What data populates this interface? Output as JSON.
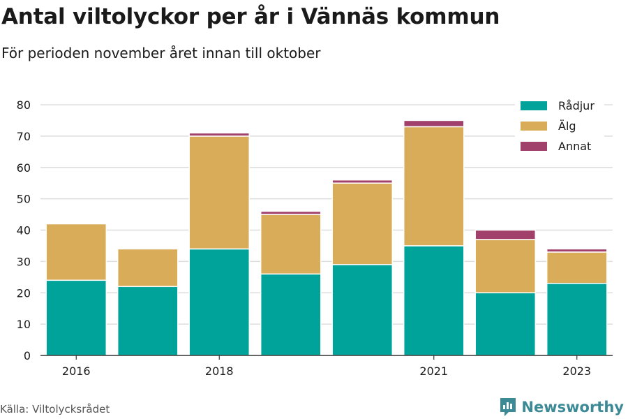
{
  "title": "Antal viltolyckor per år i Vännäs kommun",
  "subtitle": "För perioden november året innan till oktober",
  "source": "Källa: Viltolycksrådet",
  "brand": "Newsworthy",
  "colors": {
    "Rådjur": "#00a39a",
    "Älg": "#d9ac5a",
    "Annat": "#a1416b",
    "grid": "#dddddd",
    "axis": "#333333"
  },
  "chart_data": {
    "type": "bar",
    "stacked": true,
    "categories": [
      "2016",
      "2017",
      "2018",
      "2019",
      "2020",
      "2021",
      "2022",
      "2023"
    ],
    "x_tick_labels": [
      "2016",
      "",
      "2018",
      "",
      "",
      "2021",
      "",
      "2023"
    ],
    "series": [
      {
        "name": "Rådjur",
        "values": [
          24,
          22,
          34,
          26,
          29,
          35,
          20,
          23
        ]
      },
      {
        "name": "Älg",
        "values": [
          18,
          12,
          36,
          19,
          26,
          38,
          17,
          10
        ]
      },
      {
        "name": "Annat",
        "values": [
          0,
          0,
          1,
          1,
          1,
          2,
          3,
          1
        ]
      }
    ],
    "ylim": [
      0,
      80
    ],
    "yticks": [
      0,
      10,
      20,
      30,
      40,
      50,
      60,
      70,
      80
    ],
    "grid": true,
    "legend": "top-right"
  }
}
